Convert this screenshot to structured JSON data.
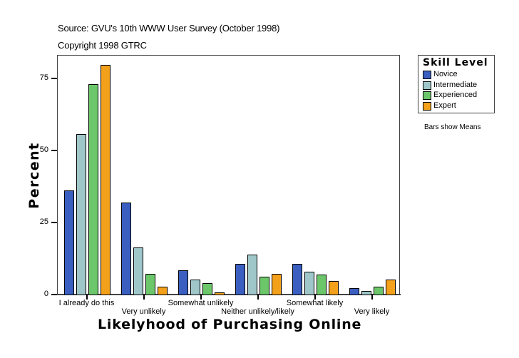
{
  "header": {
    "source": "Source: GVU's 10th WWW User Survey (October 1998)",
    "copyright": "Copyright 1998 GTRC"
  },
  "note": "Bars show Means",
  "colors": {
    "Novice": "#3a5fc0",
    "Intermediate": "#9fc7c9",
    "Experienced": "#6cc76a",
    "Expert": "#f3a11b"
  },
  "chart_data": {
    "type": "bar",
    "title": "",
    "xlabel": "Likelyhood of Purchasing Online",
    "ylabel": "Percent",
    "ylim": [
      0,
      83
    ],
    "yticks": [
      0,
      25,
      50,
      75
    ],
    "grid": false,
    "legend_title": "Skill Level",
    "legend_position": "right",
    "categories": [
      "I already do this",
      "Very unlikely",
      "Somewhat unlikely",
      "Neither unlikely/likely",
      "Somewhat likely",
      "Very likely"
    ],
    "series": [
      {
        "name": "Novice",
        "color": "#3a5fc0",
        "values": [
          36.1,
          31.9,
          8.3,
          10.6,
          10.6,
          2.2
        ]
      },
      {
        "name": "Intermediate",
        "color": "#9fc7c9",
        "values": [
          55.7,
          16.3,
          5.1,
          13.8,
          7.8,
          1.2
        ]
      },
      {
        "name": "Experienced",
        "color": "#6cc76a",
        "values": [
          73.0,
          7.3,
          3.9,
          6.1,
          6.9,
          2.6
        ]
      },
      {
        "name": "Expert",
        "color": "#f3a11b",
        "values": [
          79.7,
          2.6,
          0.7,
          7.1,
          4.6,
          5.1
        ]
      }
    ],
    "annotations": [
      "Bars show Means"
    ]
  }
}
